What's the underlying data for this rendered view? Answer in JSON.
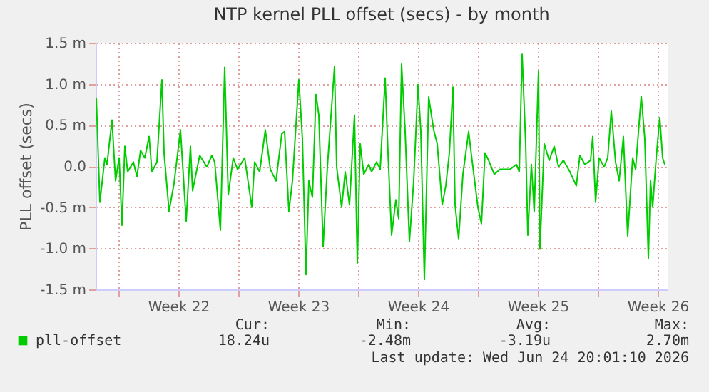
{
  "chart_data": {
    "type": "line",
    "title": "NTP kernel PLL offset (secs) - by month",
    "ylabel": "PLL offset (secs)",
    "xlim": [
      "2026-05-23T16:00",
      "2026-06-26T02:00"
    ],
    "xticks": [
      {
        "value": "2026-05-25T00:00",
        "label": null
      },
      {
        "value": "2026-05-28T12:00",
        "label": "Week 22"
      },
      {
        "value": "2026-06-01T00:00",
        "label": null
      },
      {
        "value": "2026-06-04T12:00",
        "label": "Week 23"
      },
      {
        "value": "2026-06-08T00:00",
        "label": null
      },
      {
        "value": "2026-06-11T12:00",
        "label": "Week 24"
      },
      {
        "value": "2026-06-15T00:00",
        "label": null
      },
      {
        "value": "2026-06-18T12:00",
        "label": "Week 25"
      },
      {
        "value": "2026-06-22T00:00",
        "label": null
      },
      {
        "value": "2026-06-25T12:00",
        "label": "Week 26"
      }
    ],
    "ylim": [
      -1.5,
      1.5
    ],
    "yticks": [
      {
        "value": -1.5,
        "label": "-1.5 m"
      },
      {
        "value": -1.0,
        "label": "-1.0 m"
      },
      {
        "value": -0.5,
        "label": "-0.5 m"
      },
      {
        "value": 0,
        "label": "0.0"
      },
      {
        "value": 0.5,
        "label": "0.5 m"
      },
      {
        "value": 1.0,
        "label": "1.0 m"
      },
      {
        "value": 1.5,
        "label": "1.5 m"
      }
    ],
    "grid": true,
    "legend": "bottom",
    "annotations": [
      "Cur:",
      "18.24u",
      "Min:",
      "-2.48m",
      "Avg:",
      "-3.19u",
      "Max:",
      "2.70m",
      "Last update: Wed Jun 24 20:01:10 2026"
    ],
    "series": [
      {
        "name": "pll-offset",
        "color": "#00cc00",
        "x": [
          "2026-05-23T17:00",
          "2026-05-23T22:00",
          "2026-05-24T05:00",
          "2026-05-24T08:00",
          "2026-05-24T15:00",
          "2026-05-24T20:00",
          "2026-05-25T01:00",
          "2026-05-25T05:00",
          "2026-05-25T09:00",
          "2026-05-25T13:00",
          "2026-05-25T21:00",
          "2026-05-26T02:00",
          "2026-05-26T07:00",
          "2026-05-26T13:00",
          "2026-05-26T19:00",
          "2026-05-26T23:00",
          "2026-05-27T06:00",
          "2026-05-27T13:00",
          "2026-05-27T16:00",
          "2026-05-27T23:00",
          "2026-05-28T06:00",
          "2026-05-28T15:00",
          "2026-05-28T23:00",
          "2026-05-29T05:00",
          "2026-05-29T08:00",
          "2026-05-29T18:00",
          "2026-05-30T04:00",
          "2026-05-30T11:00",
          "2026-05-30T15:00",
          "2026-05-30T23:00",
          "2026-05-31T05:00",
          "2026-05-31T10:00",
          "2026-05-31T17:00",
          "2026-05-31T23:00",
          "2026-06-01T09:00",
          "2026-06-01T19:00",
          "2026-06-01T23:00",
          "2026-06-02T06:00",
          "2026-06-02T14:00",
          "2026-06-02T21:00",
          "2026-06-03T05:00",
          "2026-06-03T13:00",
          "2026-06-03T17:00",
          "2026-06-03T23:00",
          "2026-06-04T04:00",
          "2026-06-04T13:00",
          "2026-06-04T18:00",
          "2026-06-04T23:00",
          "2026-06-05T03:00",
          "2026-06-05T08:00",
          "2026-06-05T13:00",
          "2026-06-05T17:00",
          "2026-06-05T23:00",
          "2026-06-06T05:00",
          "2026-06-06T15:00",
          "2026-06-06T18:00",
          "2026-06-07T01:00",
          "2026-06-07T06:00",
          "2026-06-07T12:00",
          "2026-06-07T19:00",
          "2026-06-07T23:00",
          "2026-06-08T03:00",
          "2026-06-08T08:00",
          "2026-06-08T15:00",
          "2026-06-08T19:00",
          "2026-06-09T02:00",
          "2026-06-09T07:00",
          "2026-06-09T14:00",
          "2026-06-09T18:00",
          "2026-06-09T23:00",
          "2026-06-10T05:00",
          "2026-06-10T09:00",
          "2026-06-10T13:00",
          "2026-06-10T18:00",
          "2026-06-11T00:00",
          "2026-06-11T06:00",
          "2026-06-11T12:00",
          "2026-06-11T16:00",
          "2026-06-11T21:00",
          "2026-06-12T03:00",
          "2026-06-12T10:00",
          "2026-06-12T15:00",
          "2026-06-12T22:00",
          "2026-06-13T03:00",
          "2026-06-13T08:00",
          "2026-06-13T13:00",
          "2026-06-13T16:00",
          "2026-06-13T21:00",
          "2026-06-14T03:00",
          "2026-06-14T11:00",
          "2026-06-14T15:00",
          "2026-06-15T00:00",
          "2026-06-15T05:00",
          "2026-06-15T10:00",
          "2026-06-15T15:00",
          "2026-06-15T23:00",
          "2026-06-16T07:00",
          "2026-06-16T21:00",
          "2026-06-17T06:00",
          "2026-06-17T10:00",
          "2026-06-17T14:00",
          "2026-06-17T19:00",
          "2026-06-17T22:00",
          "2026-06-18T03:00",
          "2026-06-18T07:00",
          "2026-06-18T13:00",
          "2026-06-18T15:00",
          "2026-06-18T21:00",
          "2026-06-19T04:00",
          "2026-06-19T11:00",
          "2026-06-19T17:00",
          "2026-06-20T00:00",
          "2026-06-20T09:00",
          "2026-06-20T18:00",
          "2026-06-20T23:00",
          "2026-06-21T06:00",
          "2026-06-21T14:00",
          "2026-06-21T17:00",
          "2026-06-21T21:00",
          "2026-06-22T02:00",
          "2026-06-22T09:00",
          "2026-06-22T14:00",
          "2026-06-22T19:00",
          "2026-06-23T01:00",
          "2026-06-23T06:00",
          "2026-06-23T12:00",
          "2026-06-23T18:00",
          "2026-06-24T01:00",
          "2026-06-24T05:00",
          "2026-06-24T13:00",
          "2026-06-24T18:00",
          "2026-06-24T23:00",
          "2026-06-25T02:00",
          "2026-06-25T05:00",
          "2026-06-25T10:00",
          "2026-06-25T15:00",
          "2026-06-25T19:00",
          "2026-06-25T22:00"
        ],
        "values": [
          0.83,
          -0.44,
          0.1,
          0.02,
          0.56,
          -0.18,
          0.1,
          -0.72,
          0.24,
          -0.07,
          0.05,
          -0.13,
          0.19,
          0.1,
          0.36,
          -0.07,
          0.05,
          1.05,
          0.16,
          -0.55,
          -0.21,
          0.44,
          -0.67,
          0.24,
          -0.3,
          0.13,
          -0.01,
          0.13,
          0.05,
          -0.78,
          1.2,
          -0.35,
          0.1,
          -0.04,
          0.1,
          -0.5,
          0.05,
          -0.07,
          0.44,
          -0.04,
          -0.18,
          0.39,
          0.42,
          -0.55,
          -0.18,
          1.05,
          0.33,
          -1.32,
          -0.18,
          -0.38,
          0.87,
          0.62,
          -0.98,
          -0.01,
          1.21,
          -0.01,
          -0.5,
          -0.07,
          -0.47,
          0.62,
          -1.18,
          0.27,
          -0.1,
          0.02,
          -0.07,
          0.05,
          -0.04,
          1.07,
          0.16,
          -0.84,
          -0.41,
          -0.64,
          1.24,
          0.42,
          -0.92,
          -0.18,
          0.99,
          0.42,
          -1.38,
          0.84,
          0.44,
          0.27,
          -0.47,
          -0.24,
          0.16,
          0.96,
          -0.47,
          -0.89,
          -0.1,
          0.42,
          0.13,
          -0.5,
          -0.7,
          0.16,
          0.07,
          -0.1,
          -0.04,
          -0.04,
          0.02,
          -0.07,
          1.36,
          0.27,
          -0.84,
          0.02,
          -0.55,
          1.16,
          -1.01,
          0.27,
          0.07,
          0.24,
          -0.01,
          0.07,
          -0.07,
          -0.24,
          0.13,
          0.02,
          0.07,
          0.36,
          -0.44,
          0.1,
          -0.01,
          0.1,
          0.67,
          0.05,
          -0.18,
          0.36,
          -0.85,
          0.1,
          -0.04,
          0.85,
          0.33,
          -1.12,
          -0.18,
          -0.5,
          0.1,
          0.59,
          0.1,
          0.02
        ]
      }
    ]
  }
}
